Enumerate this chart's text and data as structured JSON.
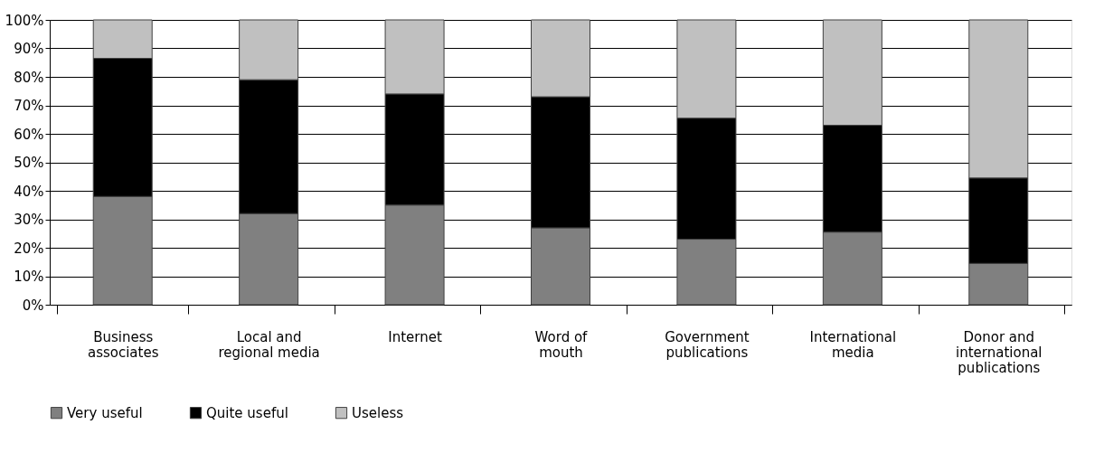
{
  "chart_data": {
    "type": "bar",
    "stacked": true,
    "categories": [
      "Business\nassociates",
      "Local and\nregional media",
      "Internet",
      "Word of\nmouth",
      "Government\npublications",
      "International\nmedia",
      "Donor and\ninternational\npublications"
    ],
    "series": [
      {
        "name": "Very useful",
        "color": "#808080",
        "values": [
          38,
          32,
          35,
          27,
          23,
          25.5,
          14.5
        ]
      },
      {
        "name": "Quite useful",
        "color": "#000000",
        "values": [
          48.5,
          47,
          39,
          46,
          42.5,
          37.5,
          30
        ]
      },
      {
        "name": "Useless",
        "color": "#c0c0c0",
        "values": [
          13.5,
          21,
          26,
          27,
          34.5,
          37,
          55.5
        ]
      }
    ],
    "ylim": [
      0,
      100
    ],
    "yticks": [
      {
        "value": 0,
        "label": "0%"
      },
      {
        "value": 10,
        "label": "10%"
      },
      {
        "value": 20,
        "label": "20%"
      },
      {
        "value": 30,
        "label": "30%"
      },
      {
        "value": 40,
        "label": "40%"
      },
      {
        "value": 50,
        "label": "50%"
      },
      {
        "value": 60,
        "label": "60%"
      },
      {
        "value": 70,
        "label": "70%"
      },
      {
        "value": 80,
        "label": "80%"
      },
      {
        "value": 90,
        "label": "90%"
      },
      {
        "value": 100,
        "label": "100%"
      }
    ],
    "grid": "y",
    "legend": "bottom"
  }
}
